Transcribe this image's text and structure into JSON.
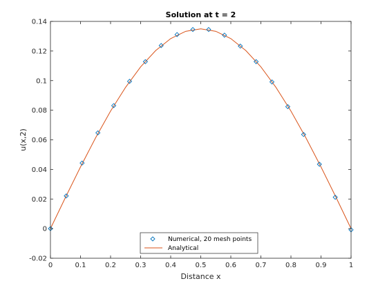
{
  "chart_data": {
    "type": "line",
    "title": "Solution at t = 2",
    "xlabel": "Distance x",
    "ylabel": "u(x,2)",
    "xlim": [
      0,
      1
    ],
    "ylim": [
      -0.02,
      0.14
    ],
    "xticks": [
      0,
      0.1,
      0.2,
      0.3,
      0.4,
      0.5,
      0.6,
      0.7,
      0.8,
      0.9,
      1
    ],
    "xtick_labels": [
      "0",
      "0.1",
      "0.2",
      "0.3",
      "0.4",
      "0.5",
      "0.6",
      "0.7",
      "0.8",
      "0.9",
      "1"
    ],
    "yticks": [
      -0.02,
      0,
      0.02,
      0.04,
      0.06,
      0.08,
      0.1,
      0.12,
      0.14
    ],
    "ytick_labels": [
      "-0.02",
      "0",
      "0.02",
      "0.04",
      "0.06",
      "0.08",
      "0.1",
      "0.12",
      "0.14"
    ],
    "grid": false,
    "legend_position": "bottom-center",
    "series": [
      {
        "name": "Numerical, 20 mesh points",
        "style": "markers",
        "marker": "diamond",
        "color": "#0072bd",
        "x": [
          0,
          0.0526,
          0.1053,
          0.1579,
          0.2105,
          0.2632,
          0.3158,
          0.3684,
          0.4211,
          0.4737,
          0.5263,
          0.5789,
          0.6316,
          0.6842,
          0.7368,
          0.7895,
          0.8421,
          0.8947,
          0.9474,
          1
        ],
        "y": [
          0,
          0.0221,
          0.0443,
          0.0647,
          0.0831,
          0.0995,
          0.1128,
          0.1237,
          0.1311,
          0.1345,
          0.1345,
          0.1307,
          0.1233,
          0.1128,
          0.0991,
          0.0824,
          0.0636,
          0.0435,
          0.0212,
          -0.0008
        ]
      },
      {
        "name": "Analytical",
        "style": "line",
        "color": "#d95319",
        "x": [
          0,
          0.05,
          0.1,
          0.15,
          0.2,
          0.25,
          0.3,
          0.35,
          0.4,
          0.45,
          0.5,
          0.55,
          0.6,
          0.65,
          0.7,
          0.75,
          0.8,
          0.85,
          0.9,
          0.95,
          1
        ],
        "y": [
          0,
          0.0211,
          0.0417,
          0.0613,
          0.0794,
          0.0955,
          0.1093,
          0.1203,
          0.1284,
          0.1333,
          0.135,
          0.1333,
          0.1284,
          0.1203,
          0.1093,
          0.0955,
          0.0794,
          0.0613,
          0.0417,
          0.0211,
          0
        ]
      }
    ]
  }
}
